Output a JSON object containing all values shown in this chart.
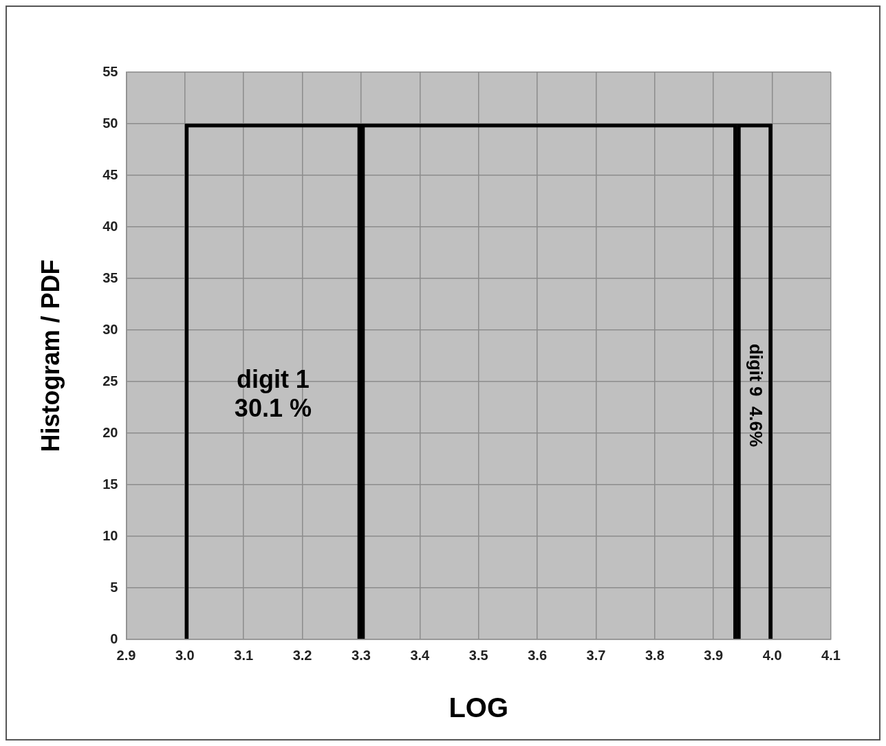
{
  "chart_data": {
    "type": "histogram",
    "xlabel": "LOG",
    "ylabel": "Histogram / PDF",
    "bins": [
      3.0,
      3.3,
      3.94,
      4.0
    ],
    "values": [
      50,
      50,
      50
    ],
    "color": "#000000",
    "xlim": [
      2.9,
      4.1
    ],
    "xticks": [
      2.9,
      {
        "value": 3,
        "label": "3.0"
      },
      3.1,
      3.2,
      3.3,
      3.4,
      3.5,
      3.6,
      3.7,
      3.8,
      3.9,
      {
        "value": 4,
        "label": "4.0"
      },
      4.1
    ],
    "ylim": [
      0,
      55
    ],
    "yticks": [
      0,
      5,
      10,
      15,
      20,
      25,
      30,
      35,
      40,
      45,
      50,
      55
    ],
    "grid": true,
    "annotations": [
      "digit 1\n30.1 %",
      "digit 9  4.6%"
    ]
  }
}
